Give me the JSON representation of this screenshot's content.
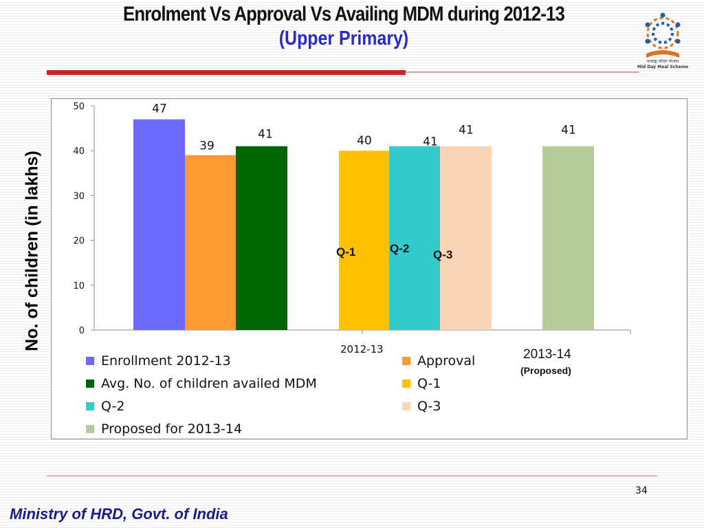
{
  "slide": {
    "title_line1": "Enrolment Vs Approval Vs Availing MDM during  2012-13",
    "title_line2": "(Upper Primary)",
    "logo_caption_hindi": "मध्याह्न भोजन योजना",
    "logo_caption_english": "Mid Day Meal Scheme",
    "y_axis_label": "No. of children (in lakhs)",
    "page_number": "34",
    "footer": "Ministry of HRD, Govt. of India"
  },
  "colors": {
    "title_blue": "#2a2acc",
    "footer_blue": "#1a1a8c",
    "accent_red": "#cc2222"
  },
  "chart_data": {
    "type": "bar",
    "categories": [
      "2012-13",
      "2013-14"
    ],
    "category_subtitles": [
      "",
      "(Proposed)"
    ],
    "ylim": [
      0,
      50
    ],
    "yticks": [
      0,
      10,
      20,
      30,
      40,
      50
    ],
    "grid": false,
    "legend_position": "bottom",
    "series": [
      {
        "name": "Enrollment 2012-13",
        "color": "#6b6bff",
        "category": "2012-13",
        "value": 47
      },
      {
        "name": "Approval",
        "color": "#ff9933",
        "category": "2012-13",
        "value": 39
      },
      {
        "name": "Avg. No. of children availed MDM",
        "color": "#006600",
        "category": "2012-13",
        "value": 41
      },
      {
        "name": "Q-1",
        "color": "#ffc000",
        "category": "2012-13",
        "value": 40
      },
      {
        "name": "Q-2",
        "color": "#33cccc",
        "category": "2012-13",
        "value": 41
      },
      {
        "name": "Q-3",
        "color": "#fbd5b5",
        "category": "2012-13",
        "value": 41
      },
      {
        "name": "Proposed for 2013-14",
        "color": "#b3cc99",
        "category": "2013-14",
        "value": 41
      }
    ],
    "annotations": [
      "Q-1",
      "Q-2",
      "Q-3"
    ]
  }
}
